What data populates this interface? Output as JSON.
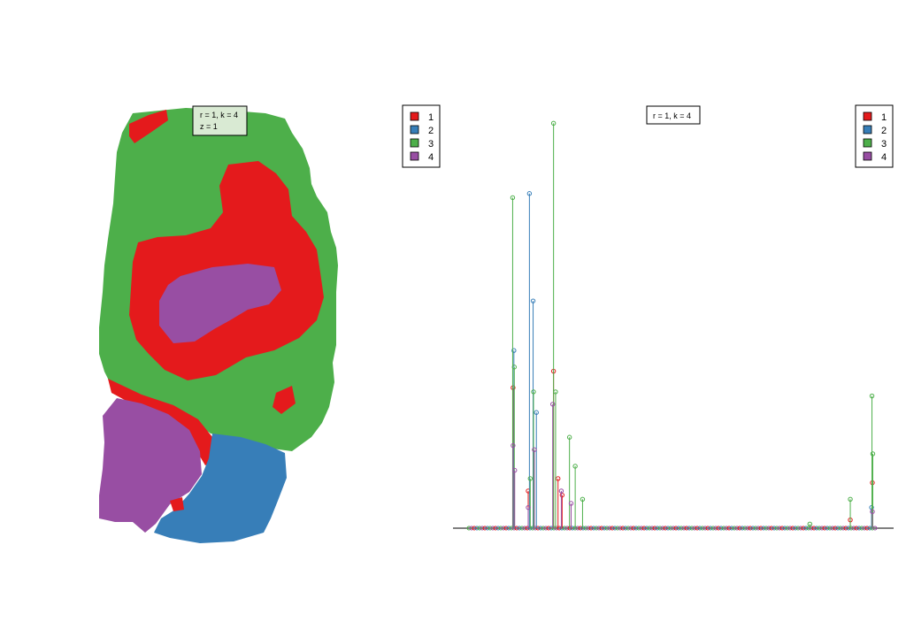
{
  "colors": {
    "1": "#E41A1C",
    "2": "#377EB8",
    "3": "#4DAF4A",
    "4": "#984EA3",
    "annotation_bg": "#D9EAD3"
  },
  "chart_data": [
    {
      "type": "heatmap",
      "description_role": "spatial segmentation image",
      "annotation_lines": [
        "r = 1, k = 4",
        "z = 1"
      ],
      "legend": {
        "placement": "top-right",
        "entries": [
          {
            "label": "1",
            "color": "#E41A1C"
          },
          {
            "label": "2",
            "color": "#377EB8"
          },
          {
            "label": "3",
            "color": "#4DAF4A"
          },
          {
            "label": "4",
            "color": "#984EA3"
          }
        ]
      },
      "classes": [
        "1",
        "2",
        "3",
        "4"
      ]
    },
    {
      "type": "line",
      "style": "spectrum (vertical lines with circle markers)",
      "annotation": "r = 1, k = 4",
      "xlim": [
        0,
        1000
      ],
      "ylim": [
        0,
        1
      ],
      "axes_visible": false,
      "legend": {
        "placement": "top-right",
        "entries": [
          {
            "label": "1",
            "color": "#E41A1C"
          },
          {
            "label": "2",
            "color": "#377EB8"
          },
          {
            "label": "3",
            "color": "#4DAF4A"
          },
          {
            "label": "4",
            "color": "#984EA3"
          }
        ]
      },
      "series": [
        {
          "class": "1",
          "color": "#E41A1C",
          "x": [
            108,
            145,
            207,
            218,
            228,
            933,
            987
          ],
          "y": [
            0.34,
            0.09,
            0.38,
            0.12,
            0.08,
            0.02,
            0.11
          ]
        },
        {
          "class": "2",
          "color": "#377EB8",
          "x": [
            110,
            148,
            157,
            165,
            985
          ],
          "y": [
            0.43,
            0.81,
            0.55,
            0.28,
            0.05
          ]
        },
        {
          "class": "3",
          "color": "#4DAF4A",
          "x": [
            107,
            111,
            150,
            158,
            207,
            212,
            246,
            260,
            278,
            834,
            933,
            986,
            988
          ],
          "y": [
            0.8,
            0.39,
            0.12,
            0.33,
            0.98,
            0.33,
            0.22,
            0.15,
            0.07,
            0.01,
            0.07,
            0.32,
            0.18
          ]
        },
        {
          "class": "4",
          "color": "#984EA3",
          "x": [
            108,
            112,
            145,
            160,
            205,
            226,
            250,
            987
          ],
          "y": [
            0.2,
            0.14,
            0.05,
            0.19,
            0.3,
            0.09,
            0.06,
            0.04
          ]
        }
      ]
    }
  ]
}
